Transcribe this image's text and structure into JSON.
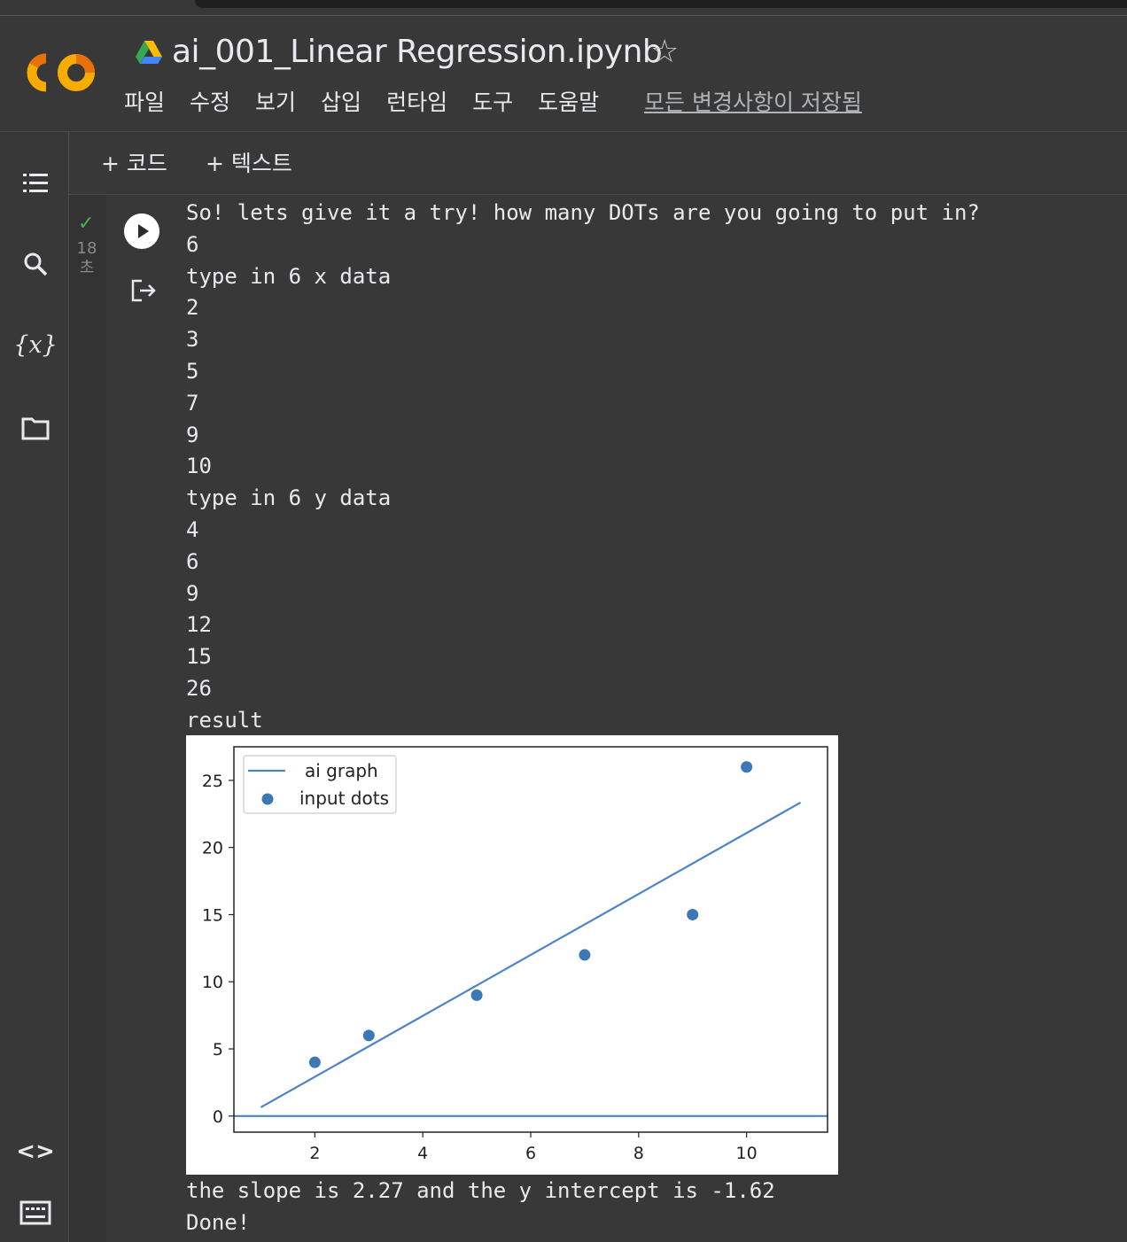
{
  "header": {
    "notebook_title": "ai_001_Linear Regression.ipynb",
    "menu": [
      "파일",
      "수정",
      "보기",
      "삽입",
      "런타임",
      "도구",
      "도움말"
    ],
    "save_status": "모든 변경사항이 저장됨"
  },
  "toolbar": {
    "add_code": "+ 코드",
    "add_text": "+ 텍스트"
  },
  "cell": {
    "exec_time_value": "18",
    "exec_time_unit": "초"
  },
  "output_lines": [
    "So! lets give it a try! how many DOTs are you going to put in?",
    "6",
    "type in 6 x data",
    "2",
    "3",
    "5",
    "7",
    "9",
    "10",
    "type in 6 y data",
    "4",
    "6",
    "9",
    "12",
    "15",
    "26",
    "result"
  ],
  "output_after": [
    "the slope is 2.27 and the y intercept is -1.62",
    "Done!"
  ],
  "sidebar_icons": [
    "toc-icon",
    "search-icon",
    "variables-icon",
    "folder-icon",
    "code-snippets-icon",
    "terminal-icon"
  ],
  "colors": {
    "background": "#383838",
    "accent_line": "#4c84c4",
    "point": "#3d78b6",
    "logo_orange": "#f9ab00",
    "check_green": "#4caf50"
  },
  "chart_data": {
    "type": "scatter",
    "title": "",
    "xlabel": "",
    "ylabel": "",
    "xlim": [
      0.5,
      11.5
    ],
    "ylim": [
      -1.2,
      27.5
    ],
    "xticks": [
      2,
      4,
      6,
      8,
      10
    ],
    "yticks": [
      0,
      5,
      10,
      15,
      20,
      25
    ],
    "legend_position": "top-left",
    "series": [
      {
        "name": "ai graph",
        "kind": "line",
        "x": [
          1,
          11
        ],
        "y": [
          0.65,
          23.35
        ]
      },
      {
        "name": "",
        "kind": "line",
        "x": [
          0.5,
          11.5
        ],
        "y": [
          0,
          0
        ]
      },
      {
        "name": "input dots",
        "kind": "scatter",
        "x": [
          2,
          3,
          5,
          7,
          9,
          10
        ],
        "y": [
          4,
          6,
          9,
          12,
          15,
          26
        ]
      }
    ]
  }
}
